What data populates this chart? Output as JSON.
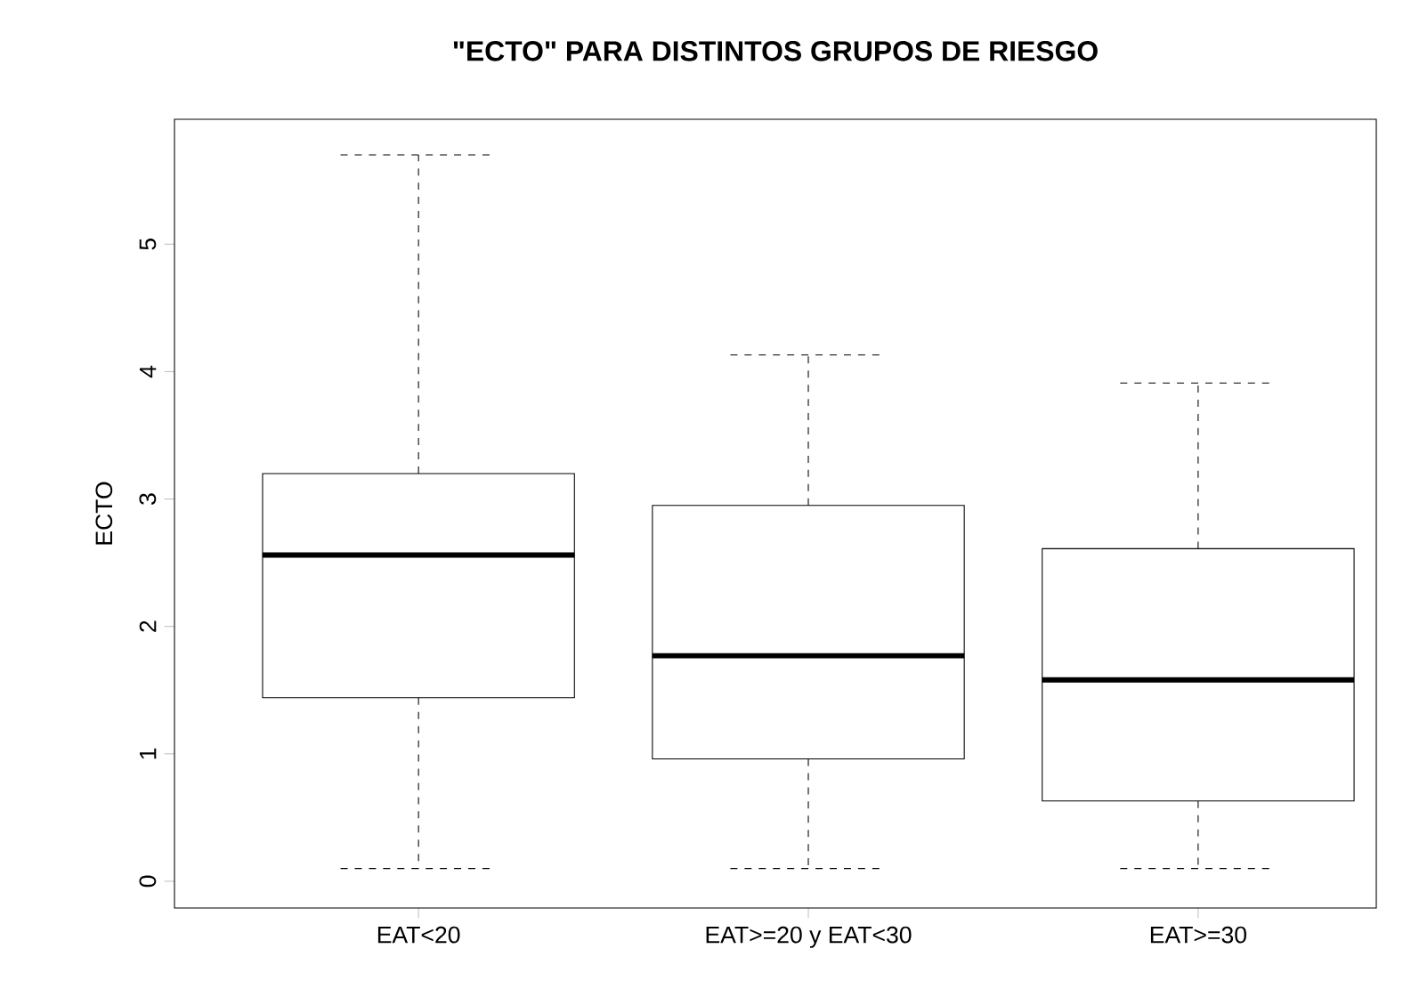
{
  "chart_data": {
    "type": "box",
    "title": "\"ECTO\" PARA DISTINTOS GRUPOS DE RIESGO",
    "ylabel": "ECTO",
    "categories": [
      "EAT<20",
      "EAT>=20 y EAT<30",
      "EAT>=30"
    ],
    "boxes": [
      {
        "low": 0.1,
        "q1": 1.44,
        "median": 2.56,
        "q3": 3.2,
        "high": 5.7
      },
      {
        "low": 0.1,
        "q1": 0.96,
        "median": 1.77,
        "q3": 2.95,
        "high": 4.13
      },
      {
        "low": 0.1,
        "q1": 0.63,
        "median": 1.58,
        "q3": 2.61,
        "high": 3.91
      }
    ],
    "ylim": [
      -0.21,
      5.98
    ],
    "yticks": [
      0,
      1,
      2,
      3,
      4,
      5
    ],
    "grid": false
  }
}
